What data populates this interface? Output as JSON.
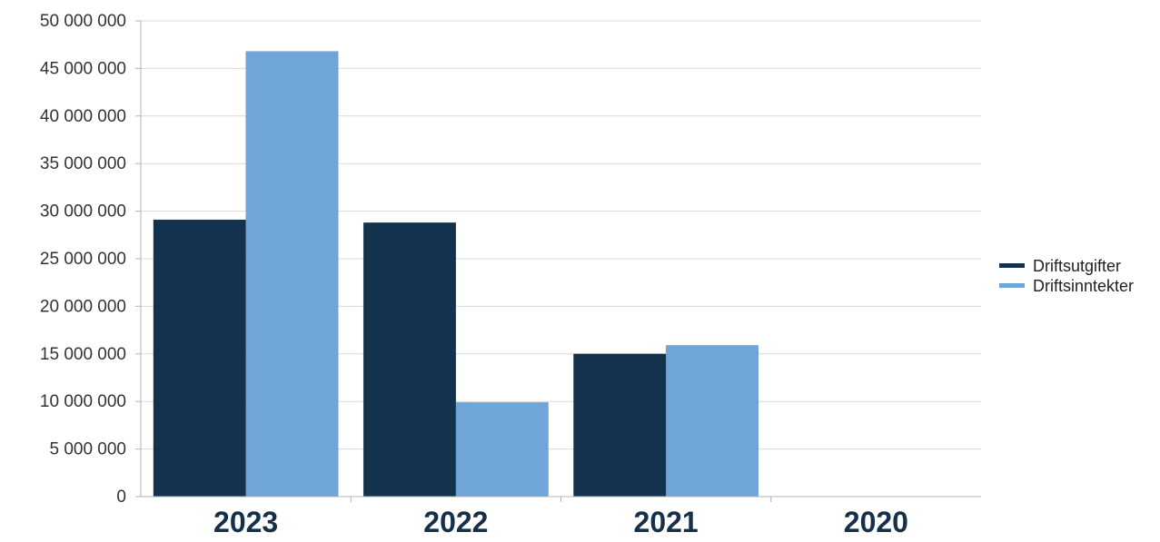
{
  "chart_data": {
    "type": "bar",
    "title": "",
    "xlabel": "",
    "ylabel": "",
    "categories": [
      "2023",
      "2022",
      "2021",
      "2020"
    ],
    "series": [
      {
        "name": "Driftsutgifter",
        "color": "#12324d",
        "values": [
          29100000,
          28800000,
          15000000,
          0
        ]
      },
      {
        "name": "Driftsinntekter",
        "color": "#6fa5d8",
        "values": [
          46800000,
          9900000,
          15900000,
          0
        ]
      }
    ],
    "ylim": [
      0,
      50000000
    ],
    "yticks": [
      0,
      5000000,
      10000000,
      15000000,
      20000000,
      25000000,
      30000000,
      35000000,
      40000000,
      45000000,
      50000000
    ],
    "ytick_labels": [
      "0",
      "5 000 000",
      "10 000 000",
      "15 000 000",
      "20 000 000",
      "25 000 000",
      "30 000 000",
      "35 000 000",
      "40 000 000",
      "45 000 000",
      "50 000 000"
    ],
    "grid": true,
    "legend_position": "right"
  }
}
